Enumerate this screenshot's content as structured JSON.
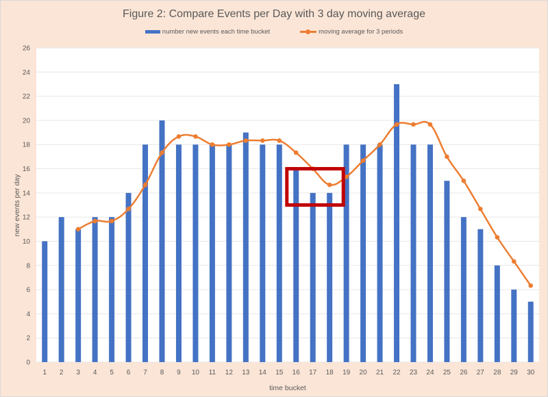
{
  "chart_data": {
    "type": "bar",
    "title": "Figure 2: Compare Events per Day with 3 day moving average",
    "xlabel": "time bucket",
    "ylabel": "new events per day",
    "ylim": [
      0,
      26
    ],
    "yticks": [
      0,
      2,
      4,
      6,
      8,
      10,
      12,
      14,
      16,
      18,
      20,
      22,
      24,
      26
    ],
    "grid": true,
    "legend_position": "top",
    "categories": [
      1,
      2,
      3,
      4,
      5,
      6,
      7,
      8,
      9,
      10,
      11,
      12,
      13,
      14,
      15,
      16,
      17,
      18,
      19,
      20,
      21,
      22,
      23,
      24,
      25,
      26,
      27,
      28,
      29,
      30
    ],
    "series": [
      {
        "name": "number new events each time bucket",
        "type": "bar",
        "color": "#4472c4",
        "values": [
          10,
          12,
          11,
          12,
          12,
          14,
          18,
          20,
          18,
          18,
          18,
          18,
          19,
          18,
          18,
          16,
          14,
          14,
          18,
          18,
          18,
          23,
          18,
          18,
          15,
          12,
          11,
          8,
          6,
          5
        ]
      },
      {
        "name": "moving average for 3 periods",
        "type": "line",
        "color": "#ed7d31",
        "values": [
          null,
          null,
          11,
          11.67,
          11.67,
          12.67,
          14.67,
          17.33,
          18.67,
          18.67,
          18,
          18,
          18.33,
          18.33,
          18.33,
          17.33,
          16,
          14.67,
          15.33,
          16.67,
          18,
          19.67,
          19.67,
          19.67,
          17,
          15,
          12.67,
          10.33,
          8.33,
          6.33
        ]
      }
    ],
    "annotations": [
      {
        "type": "rectangle",
        "color": "#c00000",
        "x_range": [
          16,
          18
        ],
        "y_range": [
          13,
          16
        ],
        "description": "highlight box around dip in buckets 16-18"
      }
    ]
  },
  "legend": {
    "bar_label": "number new events each time bucket",
    "line_label": "moving average for 3 periods"
  }
}
